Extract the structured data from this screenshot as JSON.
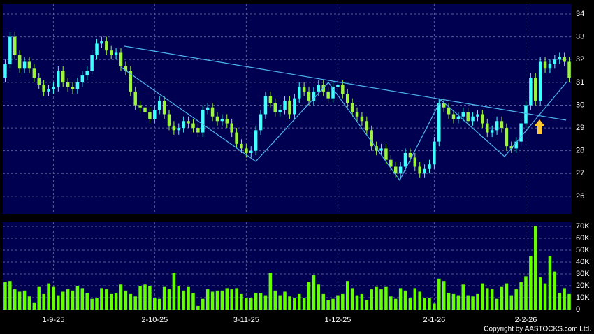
{
  "chart_data": {
    "type": "candlestick",
    "copyright": "Copyright by AASTOCKS.com Ltd.",
    "categories": [
      null,
      null,
      null,
      null,
      null,
      null,
      null,
      null,
      null,
      null,
      "1-9-25",
      null,
      null,
      null,
      null,
      null,
      null,
      null,
      null,
      null,
      null,
      null,
      null,
      null,
      null,
      null,
      null,
      null,
      null,
      null,
      null,
      "2-10-25",
      null,
      null,
      null,
      null,
      null,
      null,
      null,
      null,
      null,
      null,
      null,
      null,
      null,
      null,
      null,
      null,
      null,
      null,
      "3-11-25",
      null,
      null,
      null,
      null,
      null,
      null,
      null,
      null,
      null,
      null,
      null,
      null,
      null,
      null,
      null,
      null,
      null,
      null,
      "1-12-25",
      null,
      null,
      null,
      null,
      null,
      null,
      null,
      null,
      null,
      null,
      null,
      null,
      null,
      null,
      null,
      null,
      null,
      null,
      null,
      "2-1-26",
      null,
      null,
      null,
      null,
      null,
      null,
      null,
      null,
      null,
      null,
      null,
      null,
      null,
      null,
      null,
      null,
      null,
      null,
      "2-2-26",
      null,
      null,
      null,
      null,
      null,
      null,
      null,
      null,
      null
    ],
    "open": [
      31.2,
      31.8,
      33.0,
      32.2,
      31.6,
      31.9,
      31.6,
      31.2,
      30.9,
      30.6,
      30.7,
      30.8,
      31.5,
      31.0,
      30.8,
      30.7,
      31.0,
      31.3,
      31.5,
      32.2,
      32.7,
      32.8,
      32.4,
      32.2,
      32.3,
      31.7,
      31.5,
      30.6,
      30.0,
      29.9,
      29.7,
      29.4,
      29.8,
      30.2,
      29.6,
      29.1,
      28.9,
      29.0,
      29.3,
      29.2,
      29.0,
      28.8,
      29.8,
      29.9,
      29.5,
      29.3,
      29.4,
      29.2,
      28.8,
      28.3,
      28.1,
      27.9,
      28.0,
      28.9,
      29.6,
      30.4,
      30.1,
      29.7,
      29.8,
      30.2,
      29.6,
      30.3,
      30.8,
      30.6,
      30.2,
      30.6,
      30.9,
      30.6,
      30.3,
      30.8,
      30.9,
      30.5,
      30.1,
      29.7,
      29.5,
      29.3,
      28.9,
      28.2,
      28.0,
      28.1,
      27.6,
      27.3,
      27.0,
      27.3,
      27.9,
      27.7,
      27.3,
      27.0,
      27.2,
      27.4,
      28.4,
      30.1,
      29.9,
      29.6,
      29.4,
      29.5,
      29.7,
      29.3,
      29.5,
      29.6,
      29.2,
      28.8,
      28.9,
      29.3,
      29.0,
      28.2,
      28.1,
      28.4,
      29.2,
      30.0,
      31.2,
      30.2,
      31.9,
      31.6,
      31.8,
      32.0,
      32.1,
      31.9
    ],
    "high": [
      32.0,
      33.2,
      33.2,
      32.4,
      32.1,
      32.1,
      31.8,
      31.4,
      31.1,
      30.9,
      31.0,
      31.7,
      31.7,
      31.2,
      31.0,
      31.2,
      31.5,
      31.7,
      32.4,
      32.9,
      33.0,
      33.0,
      32.6,
      32.5,
      32.5,
      31.9,
      31.7,
      30.8,
      30.2,
      30.1,
      29.9,
      30.0,
      30.4,
      30.4,
      29.8,
      29.3,
      29.2,
      29.5,
      29.5,
      29.4,
      29.2,
      30.0,
      30.1,
      30.1,
      29.7,
      29.6,
      29.6,
      29.4,
      29.0,
      28.5,
      28.3,
      28.2,
      29.1,
      29.8,
      30.6,
      30.6,
      30.3,
      30.0,
      30.4,
      30.4,
      30.5,
      31.0,
      31.0,
      30.8,
      30.8,
      31.1,
      31.1,
      30.8,
      31.0,
      31.1,
      31.1,
      30.7,
      30.3,
      29.9,
      29.7,
      29.5,
      29.1,
      28.4,
      28.3,
      28.3,
      27.8,
      27.5,
      27.5,
      28.1,
      28.1,
      27.9,
      27.5,
      27.4,
      27.6,
      28.6,
      30.3,
      30.3,
      30.1,
      29.8,
      29.7,
      29.9,
      29.9,
      29.7,
      29.8,
      29.8,
      29.4,
      29.1,
      29.5,
      29.5,
      29.2,
      28.4,
      28.6,
      29.4,
      30.2,
      31.4,
      31.4,
      32.1,
      32.1,
      32.0,
      32.2,
      32.3,
      32.3,
      32.1
    ],
    "low": [
      31.0,
      31.6,
      32.0,
      31.4,
      31.4,
      31.4,
      31.0,
      30.7,
      30.4,
      30.4,
      30.5,
      30.6,
      30.8,
      30.6,
      30.5,
      30.5,
      30.8,
      31.1,
      31.3,
      32.0,
      32.5,
      32.2,
      32.0,
      32.0,
      31.5,
      31.3,
      30.4,
      29.8,
      29.7,
      29.5,
      29.2,
      29.2,
      29.6,
      29.4,
      28.9,
      28.7,
      28.7,
      28.8,
      29.0,
      28.8,
      28.6,
      28.6,
      29.6,
      29.3,
      29.1,
      29.1,
      29.0,
      28.6,
      28.1,
      27.9,
      27.7,
      27.7,
      27.8,
      28.7,
      29.4,
      29.9,
      29.5,
      29.5,
      29.6,
      29.4,
      29.4,
      30.1,
      30.4,
      30.0,
      30.0,
      30.4,
      30.4,
      30.1,
      30.1,
      30.6,
      30.3,
      29.9,
      29.5,
      29.3,
      29.1,
      28.7,
      28.0,
      27.8,
      27.8,
      27.4,
      27.1,
      26.8,
      26.8,
      27.1,
      27.5,
      27.1,
      26.8,
      26.8,
      27.0,
      27.2,
      28.2,
      29.7,
      29.4,
      29.2,
      29.2,
      29.3,
      29.1,
      29.1,
      29.3,
      29.0,
      28.6,
      28.6,
      28.7,
      28.8,
      28.0,
      27.9,
      27.9,
      28.2,
      29.0,
      29.8,
      30.0,
      30.0,
      31.4,
      31.4,
      31.6,
      31.8,
      31.7,
      31.0
    ],
    "close": [
      31.8,
      33.0,
      32.2,
      31.6,
      31.9,
      31.6,
      31.2,
      30.9,
      30.6,
      30.7,
      30.8,
      31.5,
      31.0,
      30.8,
      30.7,
      31.0,
      31.3,
      31.5,
      32.2,
      32.7,
      32.8,
      32.4,
      32.2,
      32.3,
      31.7,
      31.5,
      30.6,
      30.0,
      29.9,
      29.7,
      29.4,
      29.8,
      30.2,
      29.6,
      29.1,
      28.9,
      29.0,
      29.3,
      29.2,
      29.0,
      28.8,
      29.8,
      29.9,
      29.5,
      29.3,
      29.4,
      29.2,
      28.8,
      28.3,
      28.1,
      27.9,
      28.0,
      28.9,
      29.6,
      30.4,
      30.1,
      29.7,
      29.8,
      30.2,
      29.6,
      30.3,
      30.8,
      30.6,
      30.2,
      30.6,
      30.9,
      30.6,
      30.3,
      30.8,
      30.9,
      30.5,
      30.1,
      29.7,
      29.5,
      29.3,
      28.9,
      28.2,
      28.0,
      28.1,
      27.6,
      27.3,
      27.0,
      27.3,
      27.9,
      27.7,
      27.3,
      27.0,
      27.2,
      27.4,
      28.4,
      30.1,
      29.9,
      29.6,
      29.4,
      29.5,
      29.7,
      29.3,
      29.5,
      29.6,
      29.2,
      28.8,
      28.9,
      29.3,
      29.0,
      28.2,
      28.1,
      28.4,
      29.2,
      30.0,
      31.2,
      30.2,
      31.9,
      31.6,
      31.8,
      32.0,
      32.1,
      31.9,
      31.2
    ],
    "volume": [
      23000,
      24000,
      17000,
      15000,
      16000,
      11000,
      6000,
      19000,
      13000,
      22000,
      19000,
      12000,
      15000,
      17000,
      16000,
      20000,
      18000,
      14000,
      9000,
      10000,
      18000,
      17000,
      13000,
      14000,
      21000,
      16000,
      13000,
      11000,
      20000,
      21000,
      20000,
      10000,
      9000,
      19000,
      17000,
      31000,
      20000,
      16000,
      19000,
      14000,
      3000,
      9000,
      17000,
      15000,
      16000,
      16000,
      18000,
      17000,
      18000,
      13000,
      10000,
      10000,
      14000,
      14000,
      12000,
      31000,
      16000,
      12000,
      15000,
      11000,
      10000,
      13000,
      10000,
      23000,
      29000,
      21000,
      13000,
      8000,
      9000,
      12000,
      13000,
      24000,
      18000,
      12000,
      13000,
      8000,
      17000,
      19000,
      17000,
      19000,
      11000,
      9000,
      18000,
      16000,
      10000,
      18000,
      15000,
      10000,
      10000,
      5000,
      26000,
      24000,
      14000,
      13000,
      12000,
      21000,
      12000,
      11000,
      13000,
      22000,
      18000,
      17000,
      9000,
      19000,
      22000,
      12000,
      17000,
      23000,
      28000,
      45000,
      70000,
      27000,
      22000,
      45000,
      32000,
      14000,
      18000,
      13000
    ],
    "up_color": "#40ffff",
    "down_color": "#9cf53a",
    "volume_color": "#66ff00",
    "ylim": [
      25.23,
      34.43
    ],
    "yticks": [
      26,
      27,
      28,
      29,
      30,
      31,
      32,
      33,
      34
    ],
    "volume_ylim": [
      0,
      73500
    ],
    "volume_yticks": [
      0,
      {
        "value": 10000,
        "label": "10K"
      },
      {
        "value": 20000,
        "label": "20K"
      },
      {
        "value": 30000,
        "label": "30K"
      },
      {
        "value": 40000,
        "label": "40K"
      },
      {
        "value": 50000,
        "label": "50K"
      },
      {
        "value": 60000,
        "label": "60K"
      },
      {
        "value": 70000,
        "label": "70K"
      }
    ],
    "grid": true
  }
}
